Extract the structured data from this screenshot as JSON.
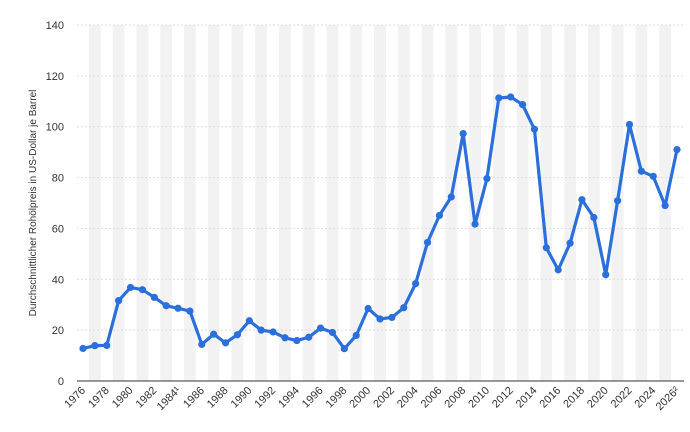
{
  "chart_data": {
    "type": "line",
    "title": "",
    "xlabel": "",
    "ylabel": "Durchschnittlicher Rohölpreis in US-Dollar je Barrel",
    "ylim": [
      0,
      140
    ],
    "yticks": [
      0,
      20,
      40,
      60,
      80,
      100,
      120,
      140
    ],
    "grid": "horizontal",
    "legend": "none",
    "colors": {
      "line": "#2a6fdb",
      "grid": "#dddddd",
      "band": "#f2f2f2",
      "axis": "#333333"
    },
    "x_tick_labels": [
      "1976",
      "1978",
      "1980",
      "1982",
      "1984¹",
      "1986",
      "1988",
      "1990",
      "1992",
      "1994",
      "1996",
      "1998",
      "2000",
      "2002",
      "2004",
      "2006",
      "2008",
      "2010",
      "2012",
      "2014",
      "2016",
      "2018",
      "2020",
      "2022",
      "2024",
      "2026²"
    ],
    "x": [
      1976,
      1977,
      1978,
      1979,
      1980,
      1981,
      1982,
      1983,
      1984,
      1985,
      1986,
      1987,
      1988,
      1989,
      1990,
      1991,
      1992,
      1993,
      1994,
      1995,
      1996,
      1997,
      1998,
      1999,
      2000,
      2001,
      2002,
      2003,
      2004,
      2005,
      2006,
      2007,
      2008,
      2009,
      2010,
      2011,
      2012,
      2013,
      2014,
      2015,
      2016,
      2017,
      2018,
      2019,
      2020,
      2021,
      2022,
      2023,
      2024,
      2025,
      2026
    ],
    "series": [
      {
        "values": [
          12.8,
          13.9,
          14.0,
          31.6,
          36.8,
          35.9,
          32.9,
          29.6,
          28.6,
          27.5,
          14.4,
          18.4,
          15.0,
          18.2,
          23.7,
          20.0,
          19.3,
          17.0,
          15.9,
          17.2,
          20.8,
          19.1,
          12.7,
          17.9,
          28.5,
          24.4,
          25.0,
          28.8,
          38.3,
          54.5,
          65.1,
          72.4,
          97.3,
          61.7,
          79.6,
          111.3,
          111.7,
          108.7,
          99.0,
          52.4,
          43.7,
          54.2,
          71.3,
          64.3,
          41.8,
          70.9,
          100.9,
          82.5,
          80.5,
          69.0,
          91.0
        ]
      }
    ]
  }
}
